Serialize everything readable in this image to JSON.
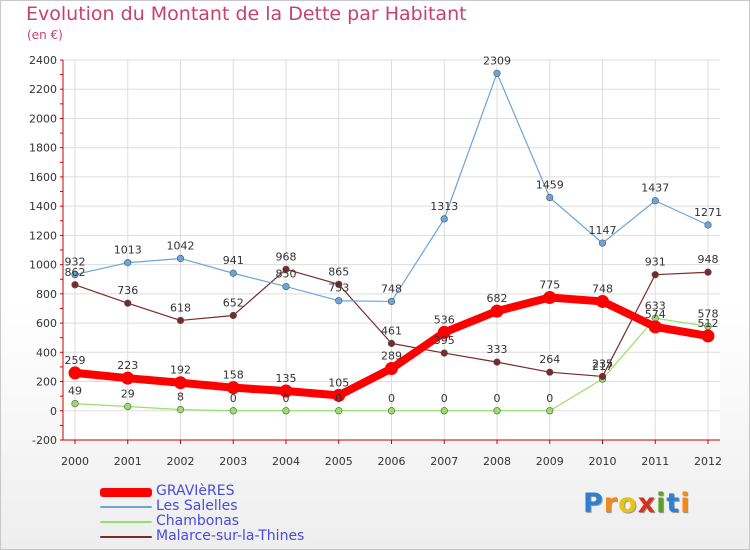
{
  "chart_data": {
    "type": "line",
    "title": "Evolution du Montant de la Dette par Habitant",
    "subtitle": "(en €)",
    "xlabel": "",
    "ylabel": "",
    "ylim": [
      -200,
      2400
    ],
    "yticks": [
      -200,
      0,
      200,
      400,
      600,
      800,
      1000,
      1200,
      1400,
      1600,
      1800,
      2000,
      2200,
      2400
    ],
    "grid": true,
    "legend_position": "bottom-left",
    "categories": [
      "2000",
      "2001",
      "2002",
      "2003",
      "2004",
      "2005",
      "2006",
      "2007",
      "2008",
      "2009",
      "2010",
      "2011",
      "2012"
    ],
    "series": [
      {
        "name": "GRAVIèRES",
        "color": "#ff0000",
        "values": [
          259,
          223,
          192,
          158,
          135,
          105,
          289,
          536,
          682,
          775,
          748,
          574,
          512
        ]
      },
      {
        "name": "Les Salelles",
        "color": "#6aa6da",
        "values": [
          932,
          1013,
          1042,
          941,
          850,
          753,
          748,
          1313,
          2309,
          1459,
          1147,
          1437,
          1271
        ]
      },
      {
        "name": "Chambonas",
        "color": "#99e06a",
        "values": [
          49,
          29,
          8,
          0,
          0,
          0,
          0,
          0,
          0,
          0,
          217,
          633,
          578
        ]
      },
      {
        "name": "Malarce-sur-la-Thines",
        "color": "#7a2a2a",
        "values": [
          862,
          736,
          618,
          652,
          968,
          865,
          461,
          395,
          333,
          264,
          235,
          931,
          948
        ]
      }
    ]
  },
  "logo": {
    "text": "Proxiti",
    "letters": [
      "P",
      "r",
      "o",
      "x",
      "i",
      "t",
      "i"
    ]
  }
}
